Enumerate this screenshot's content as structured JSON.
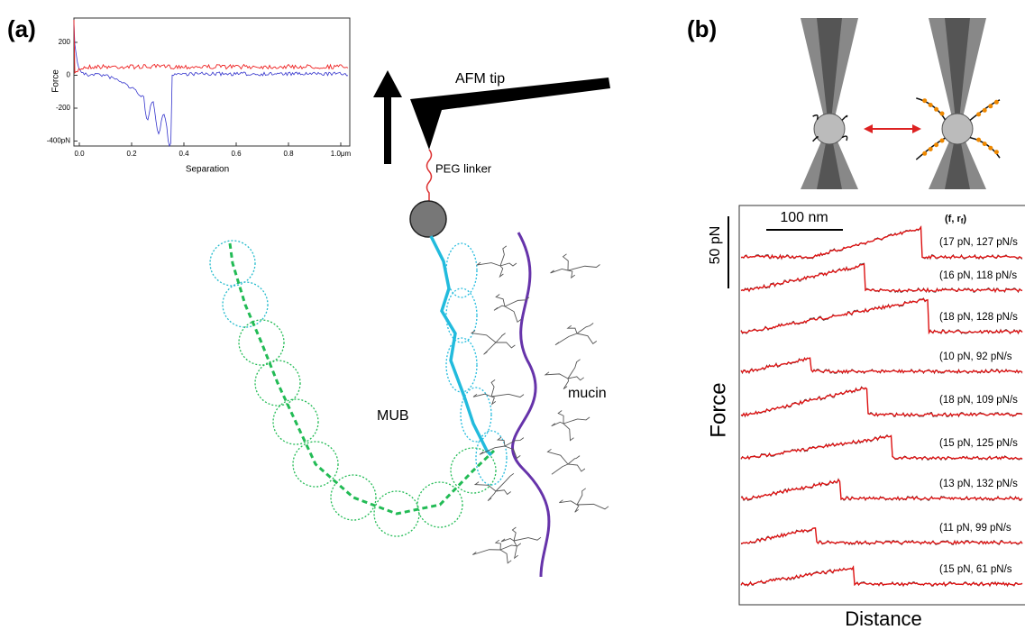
{
  "panel_a": {
    "label": "(a)",
    "inset": {
      "y_axis_label": "Force",
      "x_axis_label": "Separation",
      "y_tick_labels": [
        "200",
        "0",
        "-200",
        "-400pN"
      ],
      "x_tick_labels": [
        "0.0",
        "0.2",
        "0.4",
        "0.6",
        "0.8",
        "1.0μm"
      ]
    },
    "labels": {
      "afm_tip": "AFM tip",
      "peg_linker": "PEG linker",
      "mub": "MUB",
      "mucin": "mucin"
    }
  },
  "panel_b": {
    "label": "(b)",
    "scale_x": "100 nm",
    "scale_y": "50 pN",
    "header": {
      "main": "(f, r",
      "sub": "f",
      "close": ")"
    },
    "trace_labels": [
      "(17 pN, 127 pN/s",
      "(16 pN, 118 pN/s",
      "(18 pN, 128 pN/s",
      "(10 pN, 92 pN/s",
      "(18 pN, 109 pN/s",
      "(15 pN, 125 pN/s",
      "(13 pN, 132 pN/s",
      "(11 pN, 99 pN/s",
      "(15 pN, 61 pN/s"
    ],
    "y_axis_label": "Force",
    "x_axis_label": "Distance"
  }
}
